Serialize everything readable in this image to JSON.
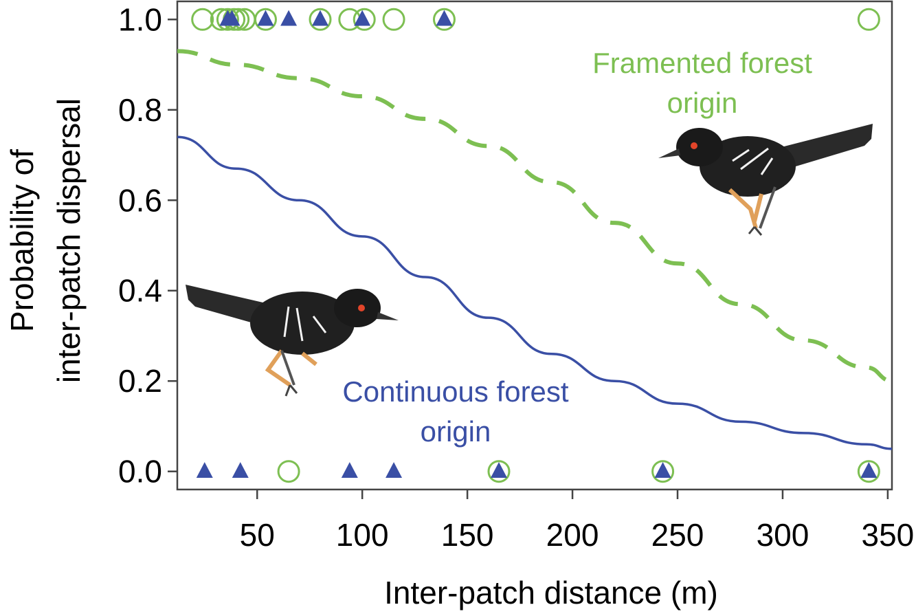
{
  "chart_data": {
    "type": "scatter",
    "xlabel": "Inter-patch distance (m)",
    "ylabel": [
      "Probability of",
      "inter-patch dispersal"
    ],
    "xlim": [
      12,
      352
    ],
    "ylim": [
      -0.04,
      1.04
    ],
    "x_ticks": [
      50,
      100,
      150,
      200,
      250,
      300,
      350
    ],
    "y_ticks": [
      "0.0",
      "0.2",
      "0.4",
      "0.6",
      "0.8",
      "1.0"
    ],
    "grid": false,
    "legend": "none",
    "annotations": [
      {
        "lines": [
          "Framented forest",
          "origin"
        ],
        "color": "#7dbf52",
        "series": "fragmented"
      },
      {
        "lines": [
          "Continuous forest",
          "origin"
        ],
        "color": "#3a4fa5",
        "series": "continuous"
      }
    ],
    "series": [
      {
        "id": "continuous",
        "color": "#3a4fa5",
        "marker": "triangle",
        "line_style": "solid",
        "fit_curve": {
          "x": [
            12,
            40,
            70,
            100,
            130,
            160,
            190,
            220,
            250,
            280,
            310,
            340,
            352
          ],
          "y": [
            0.74,
            0.67,
            0.6,
            0.52,
            0.43,
            0.34,
            0.26,
            0.2,
            0.15,
            0.11,
            0.085,
            0.06,
            0.05
          ]
        },
        "points": [
          {
            "x": 36,
            "y": 1
          },
          {
            "x": 38,
            "y": 1
          },
          {
            "x": 54,
            "y": 1
          },
          {
            "x": 65,
            "y": 1
          },
          {
            "x": 80,
            "y": 1
          },
          {
            "x": 100,
            "y": 1
          },
          {
            "x": 139,
            "y": 1
          },
          {
            "x": 25,
            "y": 0
          },
          {
            "x": 42,
            "y": 0
          },
          {
            "x": 94,
            "y": 0
          },
          {
            "x": 115,
            "y": 0
          },
          {
            "x": 165,
            "y": 0
          },
          {
            "x": 243,
            "y": 0
          },
          {
            "x": 341,
            "y": 0
          }
        ]
      },
      {
        "id": "fragmented",
        "color": "#7dbf52",
        "marker": "open-circle",
        "line_style": "dashed",
        "fit_curve": {
          "x": [
            12,
            40,
            70,
            100,
            130,
            160,
            190,
            220,
            250,
            280,
            310,
            340,
            352
          ],
          "y": [
            0.93,
            0.9,
            0.87,
            0.83,
            0.78,
            0.72,
            0.64,
            0.55,
            0.46,
            0.37,
            0.29,
            0.23,
            0.2
          ]
        },
        "points": [
          {
            "x": 24,
            "y": 1
          },
          {
            "x": 33,
            "y": 1
          },
          {
            "x": 36,
            "y": 1
          },
          {
            "x": 39,
            "y": 1
          },
          {
            "x": 41,
            "y": 1
          },
          {
            "x": 44,
            "y": 1
          },
          {
            "x": 54,
            "y": 1
          },
          {
            "x": 80,
            "y": 1
          },
          {
            "x": 94,
            "y": 1
          },
          {
            "x": 101,
            "y": 1
          },
          {
            "x": 115,
            "y": 1
          },
          {
            "x": 139,
            "y": 1
          },
          {
            "x": 341,
            "y": 1
          },
          {
            "x": 65,
            "y": 0
          },
          {
            "x": 165,
            "y": 0
          },
          {
            "x": 243,
            "y": 0
          },
          {
            "x": 341,
            "y": 0
          }
        ]
      }
    ]
  }
}
